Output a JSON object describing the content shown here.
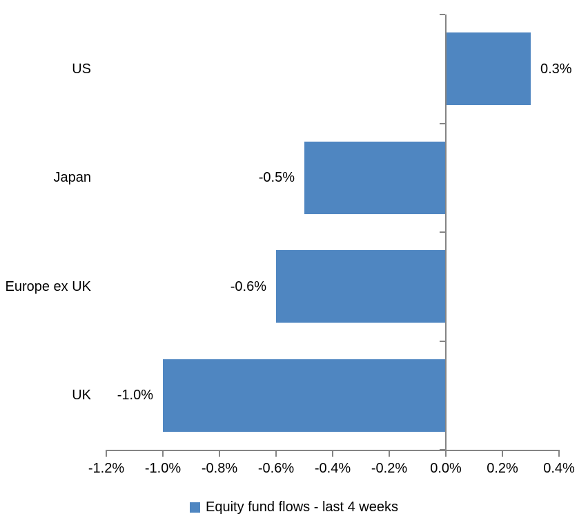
{
  "chart_data": {
    "type": "bar",
    "orientation": "horizontal",
    "title": "",
    "xlabel": "",
    "ylabel": "",
    "categories": [
      "US",
      "Japan",
      "Europe ex UK",
      "UK"
    ],
    "values": [
      0.3,
      -0.5,
      -0.6,
      -1.0
    ],
    "value_labels": [
      "0.3%",
      "-0.5%",
      "-0.6%",
      "-1.0%"
    ],
    "xlim": [
      -1.2,
      0.4
    ],
    "xtick_labels": [
      "-1.2%",
      "-1.0%",
      "-0.8%",
      "-0.6%",
      "-0.4%",
      "-0.2%",
      "0.0%",
      "0.2%",
      "0.4%"
    ],
    "grid": false,
    "legend": {
      "position": "bottom",
      "label": "Equity fund flows - last 4 weeks"
    },
    "colors": {
      "bar": "#4F86C1",
      "axis": "#848484",
      "text": "#000000",
      "background": "#FFFFFF"
    }
  }
}
